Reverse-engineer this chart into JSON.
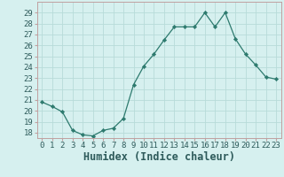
{
  "x": [
    0,
    1,
    2,
    3,
    4,
    5,
    6,
    7,
    8,
    9,
    10,
    11,
    12,
    13,
    14,
    15,
    16,
    17,
    18,
    19,
    20,
    21,
    22,
    23
  ],
  "y": [
    20.8,
    20.4,
    19.9,
    18.2,
    17.8,
    17.7,
    18.2,
    18.4,
    19.3,
    22.4,
    24.1,
    25.2,
    26.5,
    27.7,
    27.7,
    27.7,
    29.0,
    27.7,
    29.0,
    26.6,
    25.2,
    24.2,
    23.1,
    22.9
  ],
  "title": "",
  "xlabel": "Humidex (Indice chaleur)",
  "ylabel": "",
  "line_color": "#2d7a6e",
  "marker": "D",
  "marker_size": 2.2,
  "bg_color": "#d6f0ef",
  "grid_color": "#b8dbd9",
  "ylim_min": 17.5,
  "ylim_max": 30.0,
  "xlim_min": -0.5,
  "xlim_max": 23.5,
  "yticks": [
    18,
    19,
    20,
    21,
    22,
    23,
    24,
    25,
    26,
    27,
    28,
    29
  ],
  "xticks": [
    0,
    1,
    2,
    3,
    4,
    5,
    6,
    7,
    8,
    9,
    10,
    11,
    12,
    13,
    14,
    15,
    16,
    17,
    18,
    19,
    20,
    21,
    22,
    23
  ],
  "tick_fontsize": 6.5,
  "xlabel_fontsize": 8.5
}
